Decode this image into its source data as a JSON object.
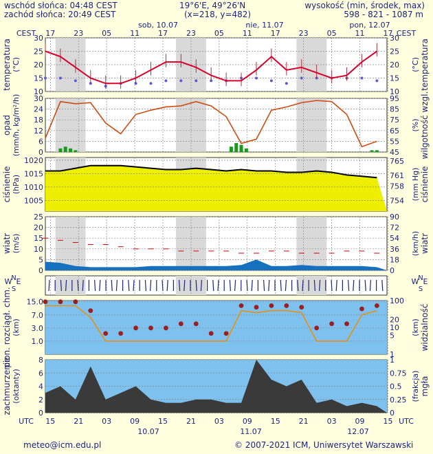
{
  "header": {
    "sunrise": "wschód słońca: 04:48 CEST",
    "sunset": "zachód słońca: 20:49 CEST",
    "coords": "19°6'E, 49°26'N",
    "grid": "(x=218,  y=482)",
    "height_title": "wysokość (min, środek, max)",
    "height_values": "598 - 821 - 1087 m"
  },
  "top_axis": {
    "tz": "CEST",
    "hours": [
      "17",
      "23",
      "05",
      "11",
      "17",
      "23",
      "05",
      "11",
      "17",
      "23",
      "05",
      "11",
      "17"
    ],
    "days": [
      "sob, 10.07",
      "nie, 11.07",
      "pon, 12.07"
    ]
  },
  "bottom_axis": {
    "tz": "UTC",
    "hours": [
      "15",
      "21",
      "03",
      "09",
      "15",
      "21",
      "03",
      "09",
      "15",
      "21",
      "03",
      "09",
      "15"
    ],
    "dates": [
      "10.07",
      "11.07",
      "12.07"
    ]
  },
  "panels": {
    "temperature": {
      "left": "temperatura",
      "left_unit": "(°C)",
      "right": "temperatura",
      "right_unit": "(°C)"
    },
    "precip": {
      "left": "opad",
      "left_unit": "(mm/h, kg/m²/h)",
      "right": "wilgotność wzgl.",
      "right_unit": "(%)"
    },
    "pressure": {
      "left": "ciśnienie",
      "left_unit": "(hPa)",
      "right": "ciśnienie",
      "right_unit": "(mm Hg)"
    },
    "wind": {
      "left": "wiatr",
      "left_unit": "(m/s)",
      "right": "wiatr",
      "right_unit": "(km/h)"
    },
    "visibility": {
      "left": "pion. rozciągł. chm.",
      "left_unit": "(km)",
      "right": "widzialność",
      "right_unit": "(km)"
    },
    "clouds": {
      "left": "zachmurzenie",
      "left_unit": "(oktanty)",
      "right": "mgła",
      "right_unit": "(frakcja)"
    }
  },
  "compass": {
    "n": "N",
    "w": "W",
    "s": "S",
    "e": "E"
  },
  "footer": {
    "email": "meteo@icm.edu.pl",
    "copyright": "© 2007-2021 ICM, Uniwersytet Warszawski"
  },
  "colors": {
    "background": "#ffffe0",
    "text": "#1a237e",
    "temperature": "#d8002a",
    "humidity": "#d04a10",
    "precip": "#1a9a1a",
    "pressure_fill": "#eeee00",
    "wind_fill": "#1570c0",
    "sky": "#7ec0ee",
    "cloud": "#3a3a3a"
  },
  "chart_data": [
    {
      "type": "line",
      "name": "temperature",
      "x_label_hours_from_start": true,
      "y_ticks": [
        10,
        15,
        20,
        25,
        30
      ],
      "ylim": [
        10,
        30
      ],
      "x": [
        0,
        3,
        6,
        9,
        12,
        15,
        18,
        21,
        24,
        27,
        30,
        33,
        36,
        39,
        42,
        45,
        48,
        51,
        54,
        57,
        60,
        63,
        66
      ],
      "values": [
        25,
        23,
        19,
        15,
        13,
        13,
        15,
        18,
        21,
        21,
        19,
        16,
        14,
        14,
        18,
        23,
        18,
        19,
        17,
        15,
        16,
        21,
        25
      ],
      "dew_point": [
        15,
        15,
        14,
        13,
        12,
        13,
        13,
        13,
        14,
        14,
        14,
        14,
        14,
        15,
        15,
        14,
        13,
        15,
        15,
        15,
        15,
        15,
        14
      ],
      "grid": true
    },
    {
      "type": "bar",
      "name": "precipitation",
      "y_ticks": [
        0,
        6,
        12,
        18,
        24,
        30
      ],
      "ylim": [
        0,
        30
      ],
      "right_ticks": [
        45,
        55,
        65,
        75,
        85,
        95
      ],
      "x": [
        3,
        4,
        5,
        6,
        37,
        38,
        39,
        40,
        65,
        66
      ],
      "values": [
        2,
        3,
        2,
        1,
        3,
        5,
        4,
        2,
        1,
        1
      ],
      "humidity_x": [
        0,
        3,
        6,
        9,
        12,
        15,
        18,
        21,
        24,
        27,
        30,
        33,
        36,
        39,
        42,
        45,
        48,
        51,
        54,
        57,
        60,
        63,
        66
      ],
      "humidity": [
        58,
        92,
        90,
        91,
        72,
        62,
        80,
        84,
        87,
        88,
        92,
        88,
        78,
        53,
        57,
        84,
        87,
        91,
        93,
        92,
        80,
        50,
        55
      ]
    },
    {
      "type": "area",
      "name": "pressure",
      "y_ticks": [
        1005,
        1010,
        1015,
        1020
      ],
      "ylim": [
        1001,
        1021
      ],
      "right_ticks": [
        754,
        758,
        761,
        765
      ],
      "x": [
        0,
        3,
        6,
        9,
        12,
        15,
        18,
        21,
        24,
        27,
        30,
        33,
        36,
        39,
        42,
        45,
        48,
        51,
        54,
        57,
        60,
        63,
        66
      ],
      "values": [
        1016,
        1016,
        1017,
        1018,
        1018,
        1018,
        1017.5,
        1017,
        1016.5,
        1016.5,
        1017,
        1016.5,
        1016,
        1016.5,
        1016,
        1016,
        1015.5,
        1015.5,
        1016,
        1015.5,
        1014.5,
        1014,
        1013.5
      ]
    },
    {
      "type": "area",
      "name": "wind",
      "y_ticks": [
        0,
        5,
        10,
        15,
        20,
        25
      ],
      "ylim": [
        0,
        25
      ],
      "right_ticks": [
        0,
        18,
        36,
        54,
        72,
        90
      ],
      "x": [
        0,
        3,
        6,
        9,
        12,
        15,
        18,
        21,
        24,
        27,
        30,
        33,
        36,
        39,
        42,
        45,
        48,
        51,
        54,
        57,
        60,
        63,
        66
      ],
      "values": [
        4,
        3.5,
        2,
        1.5,
        1.5,
        1.5,
        1.5,
        2,
        2,
        2,
        2,
        2,
        2,
        2.5,
        5,
        2,
        2,
        2.5,
        2,
        2,
        2,
        2,
        1.5
      ],
      "gusts": [
        15,
        14,
        13,
        12,
        12,
        11,
        10,
        10,
        10,
        9,
        9,
        9,
        9,
        8,
        8,
        9,
        9,
        8,
        8,
        8,
        9,
        9,
        8
      ]
    },
    {
      "type": "scatter",
      "name": "visibility",
      "y_ticks": [
        1,
        3,
        7,
        15
      ],
      "right_ticks": [
        1,
        5,
        10,
        20,
        100
      ],
      "x": [
        0,
        3,
        6,
        9,
        12,
        15,
        18,
        21,
        24,
        27,
        30,
        33,
        36,
        39,
        42,
        45,
        48,
        51,
        54,
        57,
        60,
        63,
        66
      ],
      "values": [
        15,
        15,
        15,
        9,
        2,
        2,
        3,
        3,
        3,
        4,
        4,
        2,
        2,
        12,
        11,
        12,
        12,
        11,
        3,
        4,
        4,
        10,
        12
      ]
    },
    {
      "type": "area",
      "name": "clouds",
      "y_ticks": [
        0,
        2,
        4,
        6,
        8
      ],
      "ylim": [
        0,
        8
      ],
      "right_ticks": [
        0,
        0.25,
        0.5,
        0.75,
        1
      ],
      "x": [
        0,
        3,
        6,
        9,
        12,
        15,
        18,
        21,
        24,
        27,
        30,
        33,
        36,
        39,
        42,
        45,
        48,
        51,
        54,
        57,
        60,
        63,
        66
      ],
      "values": [
        3,
        4,
        2,
        7,
        2,
        3,
        4,
        2,
        1.5,
        1.5,
        2,
        2,
        1.5,
        1.5,
        8,
        5,
        4,
        5,
        1.5,
        2,
        1,
        1.5,
        1
      ]
    }
  ]
}
